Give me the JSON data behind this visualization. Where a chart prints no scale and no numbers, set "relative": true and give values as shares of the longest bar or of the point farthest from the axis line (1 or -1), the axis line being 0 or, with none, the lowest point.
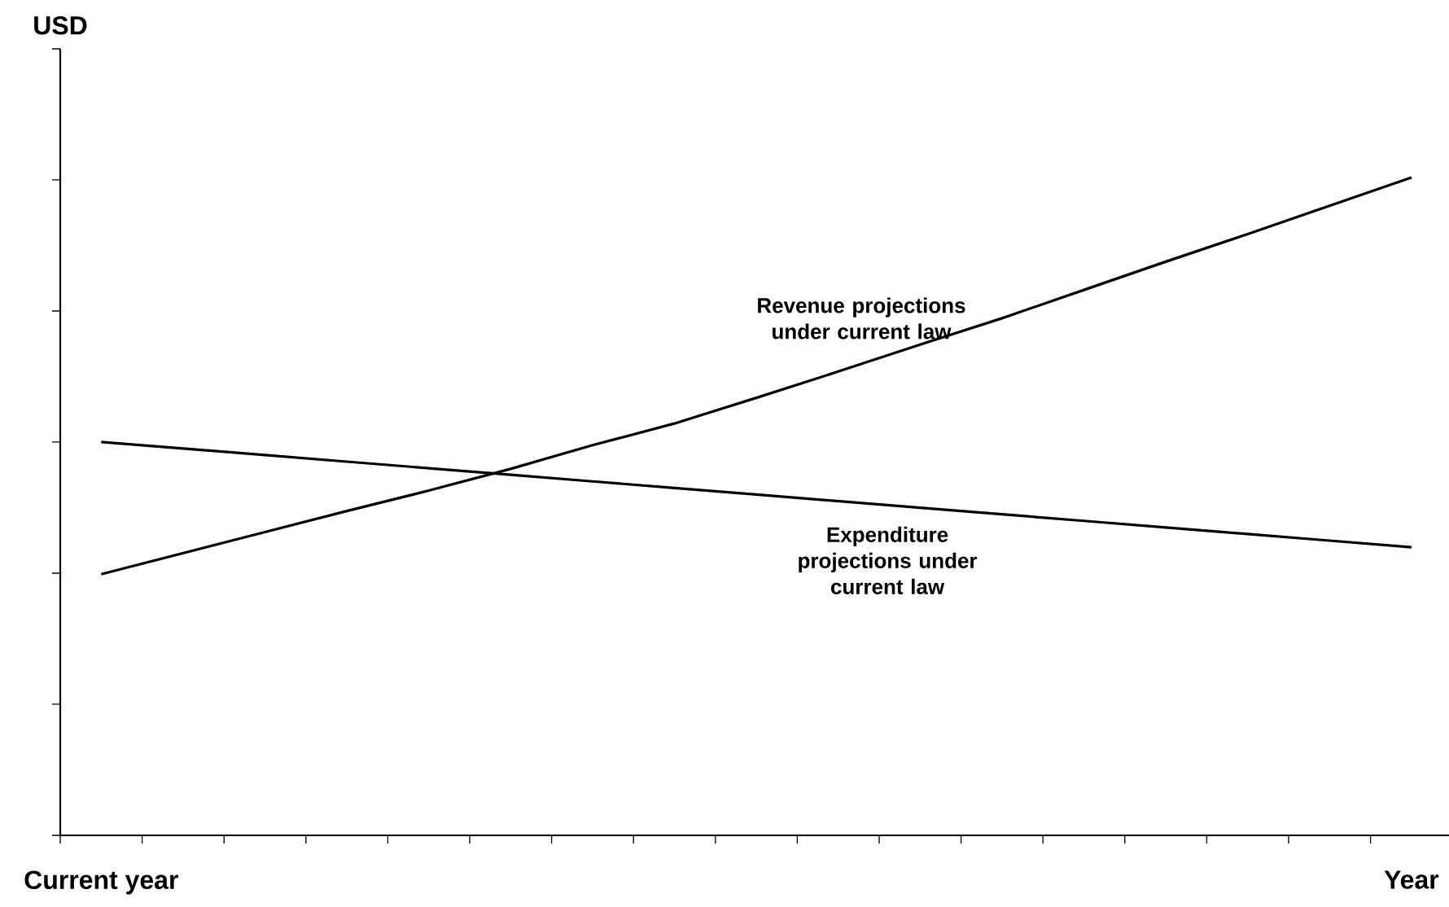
{
  "chart_data": {
    "type": "line",
    "relative": true,
    "annotations": [
      "USD"
    ],
    "categories": [
      "Current year",
      null,
      null,
      null,
      null,
      null,
      null,
      null,
      null,
      null,
      null,
      null,
      null,
      null,
      null,
      null,
      "Year"
    ],
    "series": [
      {
        "name": "Revenue projections under current law",
        "color": "#000000",
        "values": [
          0.397,
          0.429,
          0.461,
          0.493,
          0.524,
          0.557,
          0.593,
          0.626,
          0.665,
          0.705,
          0.746,
          0.786,
          0.829,
          0.872,
          0.914,
          0.957,
          1
        ]
      },
      {
        "name": "Expenditure projections under current law",
        "color": "#000000",
        "values": [
          0.598,
          0.588,
          0.578,
          0.568,
          0.558,
          0.548,
          0.538,
          0.528,
          0.518,
          0.508,
          0.498,
          0.488,
          0.478,
          0.468,
          0.458,
          0.448,
          0.438
        ]
      }
    ],
    "marker": "none",
    "line_style": "solid",
    "grid": false
  }
}
